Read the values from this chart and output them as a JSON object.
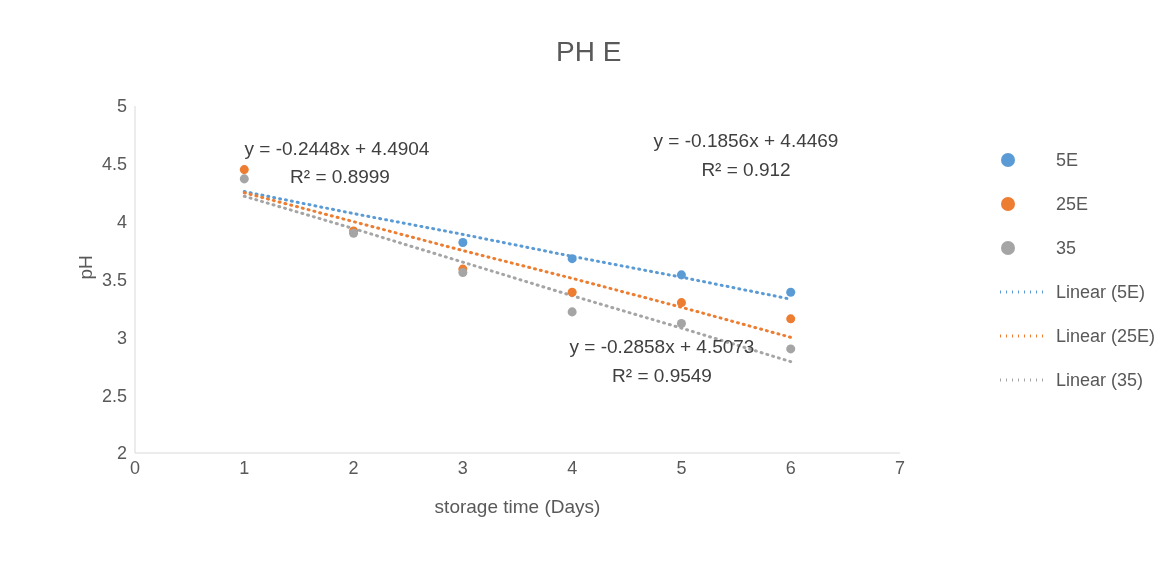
{
  "chart_data": {
    "type": "scatter",
    "title": "PH E",
    "xlabel": "storage time (Days)",
    "ylabel": "pH",
    "x": [
      1,
      2,
      3,
      4,
      5,
      6
    ],
    "series": [
      {
        "name": "5E",
        "color": "#5b9bd5",
        "values": [
          null,
          null,
          3.82,
          3.68,
          3.54,
          3.39
        ]
      },
      {
        "name": "25E",
        "color": "#ed7d31",
        "values": [
          4.45,
          3.92,
          3.59,
          3.39,
          3.3,
          3.16
        ]
      },
      {
        "name": "35",
        "color": "#a5a5a5",
        "values": [
          4.37,
          3.9,
          3.56,
          3.22,
          3.12,
          2.9
        ]
      },
      {
        "name": "Linear (5E)",
        "type": "line",
        "color": "#5b9bd5",
        "values": [
          4.26,
          4.07,
          3.89,
          3.7,
          3.52,
          3.33
        ],
        "line_style": "dotted",
        "marker": "none"
      },
      {
        "name": "Linear (25E)",
        "type": "line",
        "color": "#ed7d31",
        "values": [
          4.25,
          4.0,
          3.75,
          3.51,
          3.26,
          3.0
        ],
        "line_style": "dotted",
        "marker": "none"
      },
      {
        "name": "Linear (35)",
        "type": "line",
        "color": "#a5a5a5",
        "values": [
          4.22,
          3.94,
          3.65,
          3.36,
          3.08,
          2.79
        ],
        "line_style": "dotted",
        "marker": "none"
      }
    ],
    "xlim": [
      0,
      7
    ],
    "xticks": [
      0,
      1,
      2,
      3,
      4,
      5,
      6,
      7
    ],
    "ylim": [
      2,
      5
    ],
    "yticks": [
      2,
      2.5,
      3,
      3.5,
      4,
      4.5,
      5
    ],
    "grid": false,
    "legend": "right",
    "marker": "circle",
    "annotations": [
      "y = -0.2448x + 4.4904",
      "R² = 0.8999",
      "y = -0.1856x + 4.4469",
      "R² = 0.912",
      "y = -0.2858x + 4.5073",
      "R² = 0.9549"
    ]
  }
}
